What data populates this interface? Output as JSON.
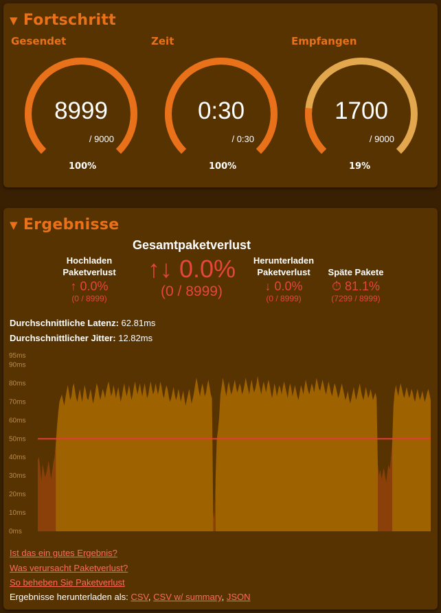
{
  "progress": {
    "title": "Fortschritt",
    "gauges": [
      {
        "label": "Gesendet",
        "value": "8999",
        "total": "/ 9000",
        "percent": "100%",
        "fraction": 1.0
      },
      {
        "label": "Zeit",
        "value": "0:30",
        "total": "/ 0:30",
        "percent": "100%",
        "fraction": 1.0
      },
      {
        "label": "Empfangen",
        "value": "1700",
        "total": "/ 9000",
        "percent": "19%",
        "fraction": 0.19
      }
    ]
  },
  "results": {
    "title": "Ergebnisse",
    "total_loss": {
      "label": "Gesamtpaketverlust",
      "arrows": "↑↓",
      "value": "0.0%",
      "fraction": "(0 / 8999)"
    },
    "upload_loss": {
      "label_line1": "Hochladen",
      "label_line2": "Paketverlust",
      "arrow": "↑",
      "value": "0.0%",
      "fraction": "(0 / 8999)"
    },
    "download_loss": {
      "label_line1": "Herunterladen",
      "label_line2": "Paketverlust",
      "arrow": "↓",
      "value": "0.0%",
      "fraction": "(0 / 8999)"
    },
    "late_packets": {
      "label": "Späte Pakete",
      "icon": "stopwatch-icon",
      "glyph": "⏱",
      "value": "81.1%",
      "fraction": "(7299 / 8999)"
    },
    "latency": {
      "label": "Durchschnittliche Latenz:",
      "value": "62.81ms"
    },
    "jitter": {
      "label": "Durchschnittlicher Jitter:",
      "value": "12.82ms"
    },
    "links": [
      "Ist das ein gutes Ergebnis?",
      "Was verursacht Paketverlust?",
      "So beheben Sie Paketverlust"
    ],
    "download": {
      "label": "Ergebnisse herunterladen als:",
      "csv": "CSV",
      "csv_summary": "CSV w/ summary",
      "json": "JSON"
    }
  },
  "colors": {
    "accent": "#e8711a",
    "panel": "#573302",
    "background": "#3a2002",
    "loss": "#e8453b",
    "area": "#9e6200",
    "threshold": "#e83a3a",
    "gauge_track": "#e3a84e"
  },
  "chart_data": {
    "type": "area",
    "title": "",
    "xlabel": "",
    "ylabel": "",
    "ylim": [
      0,
      95
    ],
    "yticks": [
      "0ms",
      "10ms",
      "20ms",
      "30ms",
      "40ms",
      "50ms",
      "60ms",
      "70ms",
      "80ms",
      "90ms",
      "95ms"
    ],
    "threshold": 50,
    "series": [
      {
        "x_start": 0,
        "x_end": 30,
        "values": [
          38,
          40,
          34,
          26,
          36,
          33,
          29,
          31,
          34,
          38,
          33,
          28,
          32,
          37,
          40,
          47,
          57,
          64,
          70,
          72,
          74,
          71,
          68,
          72,
          76,
          79,
          75,
          71,
          73,
          78,
          80,
          76,
          72,
          70,
          74,
          77,
          73,
          70,
          75,
          79,
          76,
          72,
          71,
          74,
          77,
          73,
          69,
          72,
          76,
          80,
          78,
          74,
          71,
          74,
          77,
          75,
          72,
          76,
          79,
          81,
          77,
          73,
          75,
          79,
          76,
          72,
          75,
          78,
          74,
          70,
          73,
          77,
          80,
          76,
          73,
          76,
          79,
          75,
          71,
          74,
          78,
          81,
          77,
          74,
          77,
          80,
          76,
          73,
          77,
          80,
          76,
          72,
          74,
          78,
          81,
          77,
          74,
          76,
          80,
          77,
          74,
          77,
          81,
          78,
          74,
          72,
          76,
          79,
          77,
          73,
          70,
          72,
          75,
          78,
          74,
          71,
          73,
          77,
          74,
          70,
          73,
          76,
          72,
          68,
          71,
          74,
          77,
          73,
          69,
          72,
          75,
          79,
          83,
          80,
          76,
          73,
          77,
          80,
          77,
          73,
          75,
          79,
          82,
          78,
          74,
          72,
          10,
          6,
          30,
          50,
          55,
          62,
          74,
          78,
          83,
          80,
          76,
          73,
          78,
          81,
          77,
          74,
          76,
          79,
          82,
          78,
          75,
          77,
          80,
          78,
          74,
          76,
          79,
          83,
          80,
          77,
          74,
          79,
          82,
          78,
          75,
          77,
          80,
          84,
          80,
          77,
          74,
          78,
          81,
          78,
          75,
          79,
          82,
          79,
          75,
          72,
          76,
          80,
          77,
          73,
          76,
          79,
          77,
          74,
          78,
          81,
          78,
          75,
          72,
          77,
          80,
          77,
          73,
          76,
          79,
          76,
          73,
          71,
          75,
          79,
          77,
          74,
          78,
          82,
          79,
          76,
          74,
          77,
          80,
          78,
          75,
          79,
          83,
          80,
          77,
          76,
          79,
          82,
          79,
          76,
          74,
          78,
          81,
          78,
          75,
          73,
          77,
          80,
          78,
          75,
          72,
          74,
          77,
          80,
          77,
          74,
          71,
          73,
          76,
          72,
          69,
          72,
          75,
          78,
          74,
          71,
          74,
          77,
          80,
          76,
          73,
          71,
          74,
          78,
          75,
          72,
          74,
          77,
          74,
          71,
          73,
          75,
          72,
          36,
          30,
          33,
          28,
          31,
          34,
          30,
          26,
          32,
          36,
          33,
          40,
          48,
          68,
          75,
          79,
          76,
          73,
          77,
          80,
          77,
          74,
          72,
          75,
          78,
          75,
          72,
          74,
          77,
          75,
          72,
          70,
          74,
          77,
          74,
          71,
          73,
          76,
          73,
          70,
          72,
          75,
          77,
          74,
          71
        ]
      }
    ]
  }
}
